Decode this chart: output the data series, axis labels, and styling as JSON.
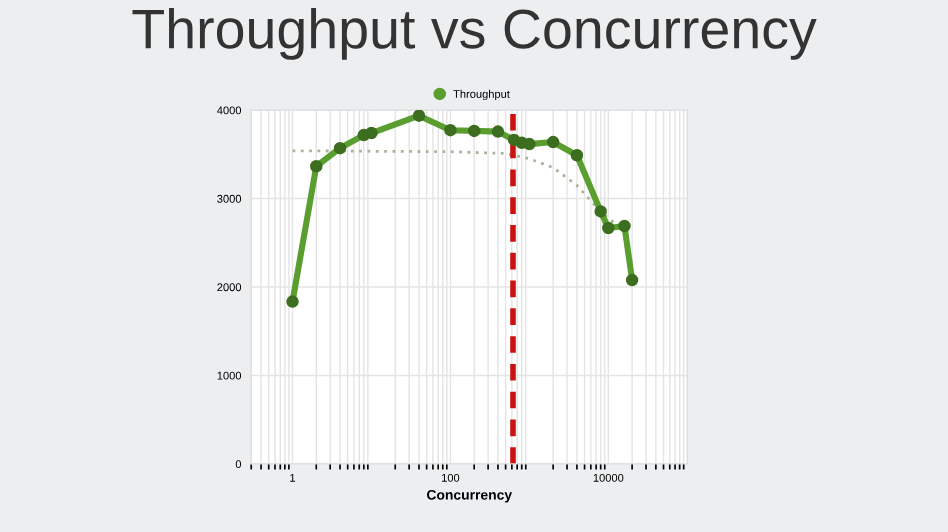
{
  "chart_data": {
    "type": "line",
    "title": "Throughput vs Concurrency",
    "xlabel": "Concurrency",
    "log": "x",
    "xlim": [
      0.3,
      100000
    ],
    "xticks": [
      1,
      100,
      10000
    ],
    "ylim": [
      0,
      4000
    ],
    "yticks": [
      0,
      1000,
      2000,
      3000,
      4000
    ],
    "grid": true,
    "legend": "top",
    "marker": "circle",
    "line_style": "solid",
    "series": [
      {
        "name": "Throughput",
        "color": "#5a9e2f",
        "x": [
          1,
          2,
          4,
          8,
          10,
          40,
          100,
          200,
          400,
          640,
          800,
          1000,
          2000,
          4000,
          8000,
          10000,
          16000,
          20000
        ],
        "values": [
          1835,
          3365,
          3570,
          3718,
          3741,
          3937,
          3773,
          3765,
          3757,
          3663,
          3631,
          3616,
          3639,
          3490,
          2855,
          2667,
          2690,
          2078
        ]
      },
      {
        "color": "#a8b49a",
        "marker": "none",
        "line_style": "dotted",
        "x": [
          1,
          100,
          500,
          1000,
          2000,
          4000,
          8000,
          16000,
          22000
        ],
        "values": [
          3540,
          3530,
          3510,
          3450,
          3350,
          3150,
          2850,
          2630,
          2000
        ]
      }
    ],
    "ref_lines": [
      {
        "axis": "x",
        "value": 620,
        "color": "#cc1111",
        "line_style": "dashed"
      }
    ]
  }
}
